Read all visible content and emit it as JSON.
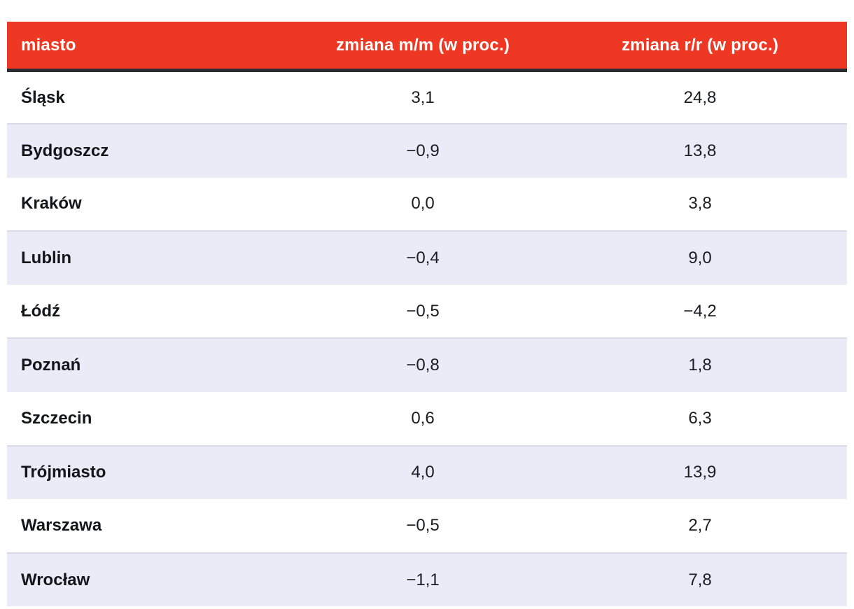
{
  "table": {
    "columns": [
      {
        "label": "miasto",
        "align": "left"
      },
      {
        "label": "zmiana m/m (w proc.)",
        "align": "center"
      },
      {
        "label": "zmiana r/r (w proc.)",
        "align": "center"
      }
    ],
    "rows": [
      {
        "city": "Śląsk",
        "mm": "3,1",
        "yy": "24,8"
      },
      {
        "city": "Bydgoszcz",
        "mm": "−0,9",
        "yy": "13,8"
      },
      {
        "city": "Kraków",
        "mm": "0,0",
        "yy": "3,8"
      },
      {
        "city": "Lublin",
        "mm": "−0,4",
        "yy": "9,0"
      },
      {
        "city": "Łódź",
        "mm": "−0,5",
        "yy": "−4,2"
      },
      {
        "city": "Poznań",
        "mm": "−0,8",
        "yy": "1,8"
      },
      {
        "city": "Szczecin",
        "mm": "0,6",
        "yy": "6,3"
      },
      {
        "city": "Trójmiasto",
        "mm": "4,0",
        "yy": "13,9"
      },
      {
        "city": "Warszawa",
        "mm": "−0,5",
        "yy": "2,7"
      },
      {
        "city": "Wrocław",
        "mm": "−1,1",
        "yy": "7,8"
      }
    ]
  },
  "chart_data": {
    "type": "table",
    "title": "",
    "columns": [
      "miasto",
      "zmiana m/m (w proc.)",
      "zmiana r/r (w proc.)"
    ],
    "rows": [
      [
        "Śląsk",
        3.1,
        24.8
      ],
      [
        "Bydgoszcz",
        -0.9,
        13.8
      ],
      [
        "Kraków",
        0.0,
        3.8
      ],
      [
        "Lublin",
        -0.4,
        9.0
      ],
      [
        "Łódź",
        -0.5,
        -4.2
      ],
      [
        "Poznań",
        -0.8,
        1.8
      ],
      [
        "Szczecin",
        0.6,
        6.3
      ],
      [
        "Trójmiasto",
        4.0,
        13.9
      ],
      [
        "Warszawa",
        -0.5,
        2.7
      ],
      [
        "Wrocław",
        -1.1,
        7.8
      ]
    ],
    "layout_hints": {
      "header_background": "#ee3824",
      "header_text_color": "#ffffff",
      "zebra_row_color": "#e9ebf7",
      "header_divider_color": "#2b2c2e",
      "decimal_separator": ","
    }
  },
  "colors": {
    "header_red": "#ee3824",
    "header_divider": "#2b2c2e",
    "row_shaded": "#e9ebf7",
    "row_shaded_border": "#d9dbe9",
    "text": "#1c1d22"
  }
}
